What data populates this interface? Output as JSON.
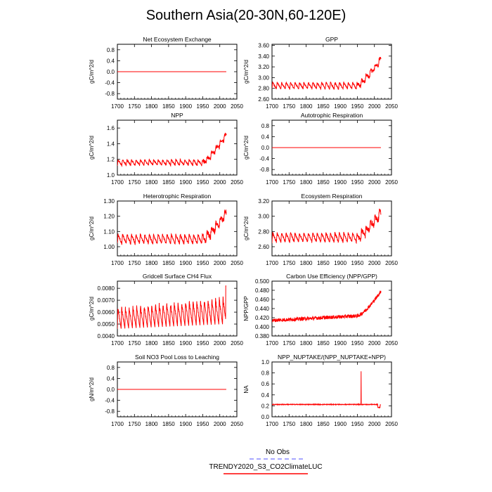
{
  "figure": {
    "title": "Southern Asia(20-30N,60-120E)"
  },
  "legend": {
    "entries": [
      {
        "label": "No Obs",
        "color": "#8a8aff",
        "dash": true
      },
      {
        "label": "TRENDY2020_S3_CO2ClimateLUC",
        "color": "#ff0000",
        "dash": false
      }
    ]
  },
  "colors": {
    "model": "#ff0000",
    "obs": "#8a8aff"
  },
  "chart_data": [
    {
      "type": "line",
      "title": "Net Ecosystem Exchange",
      "ylabel": "gC/m^2/d",
      "xlabel": "",
      "xlim": [
        1700,
        2050
      ],
      "ylim": [
        -1.0,
        1.0
      ],
      "xticks": [
        1700,
        1750,
        1800,
        1850,
        1900,
        1950,
        2000,
        2050
      ],
      "yticks": [
        -0.8,
        -0.4,
        0.0,
        0.4,
        0.8
      ],
      "ytick_labels": [
        "-0.8",
        "-0.4",
        "0.0",
        "0.4",
        "0.8"
      ],
      "series": [
        {
          "name": "TRENDY2020_S3_CO2ClimateLUC",
          "shape": "flat",
          "x_range": [
            1700,
            2019
          ],
          "value": 0.0
        }
      ]
    },
    {
      "type": "line",
      "title": "GPP",
      "ylabel": "gC/m^2/d",
      "xlabel": "",
      "xlim": [
        1700,
        2050
      ],
      "ylim": [
        2.6,
        3.62
      ],
      "xticks": [
        1700,
        1750,
        1800,
        1850,
        1900,
        1950,
        2000,
        2050
      ],
      "yticks": [
        2.6,
        2.8,
        3.0,
        3.2,
        3.4,
        3.6
      ],
      "ytick_labels": [
        "2.60",
        "2.80",
        "3.00",
        "3.20",
        "3.40",
        "3.60"
      ],
      "series": [
        {
          "name": "TRENDY2020_S3_CO2ClimateLUC",
          "shape": "cyclic-rise",
          "x_range": [
            1700,
            2019
          ],
          "base": 2.85,
          "amp": 0.12,
          "rise_start": 1950,
          "end_value": 3.35,
          "noise": 0.03
        }
      ]
    },
    {
      "type": "line",
      "title": "NPP",
      "ylabel": "gC/m^2/d",
      "xlabel": "",
      "xlim": [
        1700,
        2050
      ],
      "ylim": [
        1.0,
        1.7
      ],
      "xticks": [
        1700,
        1750,
        1800,
        1850,
        1900,
        1950,
        2000,
        2050
      ],
      "yticks": [
        1.0,
        1.2,
        1.4,
        1.6
      ],
      "ytick_labels": [
        "1.0",
        "1.2",
        "1.4",
        "1.6"
      ],
      "series": [
        {
          "name": "TRENDY2020_S3_CO2ClimateLUC",
          "shape": "cyclic-rise",
          "x_range": [
            1700,
            2019
          ],
          "base": 1.16,
          "amp": 0.07,
          "rise_start": 1950,
          "end_value": 1.52,
          "noise": 0.02
        }
      ]
    },
    {
      "type": "line",
      "title": "Autotrophic Respiration",
      "ylabel": "gC/m^2/d",
      "xlabel": "",
      "xlim": [
        1700,
        2050
      ],
      "ylim": [
        -1.0,
        1.0
      ],
      "xticks": [
        1700,
        1750,
        1800,
        1850,
        1900,
        1950,
        2000,
        2050
      ],
      "yticks": [
        -0.8,
        -0.4,
        0.0,
        0.4,
        0.8
      ],
      "ytick_labels": [
        "-0.8",
        "-0.4",
        "0.0",
        "0.4",
        "0.8"
      ],
      "series": [
        {
          "name": "TRENDY2020_S3_CO2ClimateLUC",
          "shape": "flat",
          "x_range": [
            1700,
            2019
          ],
          "value": 0.0
        }
      ]
    },
    {
      "type": "line",
      "title": "Heterotrophic Respiration",
      "ylabel": "gC/m^2/d",
      "xlabel": "",
      "xlim": [
        1700,
        2050
      ],
      "ylim": [
        0.94,
        1.3
      ],
      "xticks": [
        1700,
        1750,
        1800,
        1850,
        1900,
        1950,
        2000,
        2050
      ],
      "yticks": [
        1.0,
        1.1,
        1.2,
        1.3
      ],
      "ytick_labels": [
        "1.00",
        "1.10",
        "1.20",
        "1.30"
      ],
      "series": [
        {
          "name": "TRENDY2020_S3_CO2ClimateLUC",
          "shape": "cyclic-rise",
          "x_range": [
            1700,
            2019
          ],
          "base": 1.05,
          "amp": 0.06,
          "rise_start": 1950,
          "end_value": 1.22,
          "noise": 0.015
        }
      ]
    },
    {
      "type": "line",
      "title": "Ecosystem Respiration",
      "ylabel": "gC/m^2/d",
      "xlabel": "",
      "xlim": [
        1700,
        2050
      ],
      "ylim": [
        2.48,
        3.2
      ],
      "xticks": [
        1700,
        1750,
        1800,
        1850,
        1900,
        1950,
        2000,
        2050
      ],
      "yticks": [
        2.6,
        2.8,
        3.0,
        3.2
      ],
      "ytick_labels": [
        "2.60",
        "2.80",
        "3.00",
        "3.20"
      ],
      "series": [
        {
          "name": "TRENDY2020_S3_CO2ClimateLUC",
          "shape": "cyclic-rise",
          "x_range": [
            1700,
            2019
          ],
          "base": 2.72,
          "amp": 0.12,
          "rise_start": 1950,
          "end_value": 3.05,
          "noise": 0.03
        }
      ]
    },
    {
      "type": "line",
      "title": "Gridcell Surface CH4 Flux",
      "ylabel": "gC/m^2/d",
      "xlabel": "",
      "xlim": [
        1700,
        2050
      ],
      "ylim": [
        0.004,
        0.0086
      ],
      "xticks": [
        1700,
        1750,
        1800,
        1850,
        1900,
        1950,
        2000,
        2050
      ],
      "yticks": [
        0.004,
        0.005,
        0.006,
        0.007,
        0.008
      ],
      "ytick_labels": [
        "0.0040",
        "0.0050",
        "0.0060",
        "0.0070",
        "0.0080"
      ],
      "series": [
        {
          "name": "TRENDY2020_S3_CO2ClimateLUC",
          "shape": "sawtooth-rise",
          "x_range": [
            1700,
            2019
          ],
          "low": 0.0046,
          "high": 0.0065,
          "low_end": 0.005,
          "high_end": 0.0074,
          "spike_end": 0.0082
        }
      ]
    },
    {
      "type": "line",
      "title": "Carbon Use Efficiency (NPP/GPP)",
      "ylabel": "NPP/GPP",
      "xlabel": "",
      "xlim": [
        1700,
        2050
      ],
      "ylim": [
        0.38,
        0.5
      ],
      "xticks": [
        1700,
        1750,
        1800,
        1850,
        1900,
        1950,
        2000,
        2050
      ],
      "yticks": [
        0.38,
        0.4,
        0.42,
        0.44,
        0.46,
        0.48,
        0.5
      ],
      "ytick_labels": [
        "0.380",
        "0.400",
        "0.420",
        "0.440",
        "0.460",
        "0.480",
        "0.500"
      ],
      "series": [
        {
          "name": "TRENDY2020_S3_CO2ClimateLUC",
          "shape": "noisy-rise",
          "x_range": [
            1700,
            2019
          ],
          "start": 0.414,
          "mid": 0.424,
          "mid_year": 1950,
          "end_value": 0.478,
          "noise": 0.004
        }
      ]
    },
    {
      "type": "line",
      "title": "Soil NO3 Pool Loss to Leaching",
      "ylabel": "gN/m^2/d",
      "xlabel": "",
      "xlim": [
        1700,
        2050
      ],
      "ylim": [
        -1.0,
        1.0
      ],
      "xticks": [
        1700,
        1750,
        1800,
        1850,
        1900,
        1950,
        2000,
        2050
      ],
      "yticks": [
        -0.8,
        -0.4,
        0.0,
        0.4,
        0.8
      ],
      "ytick_labels": [
        "-0.8",
        "-0.4",
        "0.0",
        "0.4",
        "0.8"
      ],
      "series": [
        {
          "name": "TRENDY2020_S3_CO2ClimateLUC",
          "shape": "flat",
          "x_range": [
            1700,
            2019
          ],
          "value": 0.0
        }
      ]
    },
    {
      "type": "line",
      "title": "NPP_NUPTAKE/(NPP_NUPTAKE+NPP)",
      "ylabel": "NA",
      "xlabel": "",
      "xlim": [
        1700,
        2050
      ],
      "ylim": [
        0.0,
        1.0
      ],
      "xticks": [
        1700,
        1750,
        1800,
        1850,
        1900,
        1950,
        2000,
        2050
      ],
      "yticks": [
        0.0,
        0.2,
        0.4,
        0.6,
        0.8,
        1.0
      ],
      "ytick_labels": [
        "0.0",
        "0.2",
        "0.4",
        "0.6",
        "0.8",
        "1.0"
      ],
      "series": [
        {
          "name": "TRENDY2020_S3_CO2ClimateLUC",
          "shape": "spike",
          "x_range": [
            1700,
            2019
          ],
          "value": 0.225,
          "noise": 0.006,
          "spike_year": 1961,
          "spike_value": 0.83,
          "dip_year": 2010,
          "dip_value": 0.17,
          "end_value": 0.22
        }
      ]
    }
  ]
}
